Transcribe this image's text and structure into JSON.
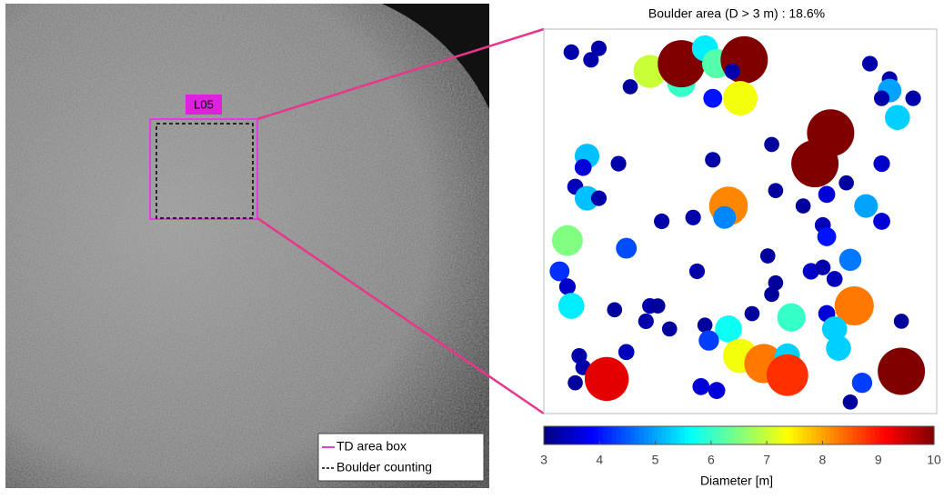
{
  "image_panel": {
    "marker_label": "L05",
    "legend": [
      "TD area box",
      "Boulder counting"
    ]
  },
  "chart_data": {
    "type": "bubble",
    "title": "Boulder area (D > 3 m) : 18.6%",
    "x": [
      7,
      12,
      14,
      22,
      27,
      35,
      35,
      41,
      44,
      51,
      43,
      50,
      48,
      83,
      88,
      88,
      86,
      94,
      90,
      73,
      58,
      69,
      43,
      11,
      10,
      19,
      86,
      77,
      72,
      59,
      8,
      11,
      14,
      47,
      46,
      30,
      38,
      66,
      82,
      86,
      71,
      72,
      6,
      21,
      57,
      4,
      6,
      39,
      68,
      71,
      78,
      74,
      59,
      58,
      7,
      18,
      27,
      29,
      26,
      32,
      41,
      53,
      79,
      72,
      63,
      74,
      91,
      47,
      42,
      50,
      56,
      62,
      62,
      75,
      9,
      21,
      10,
      16,
      8,
      40,
      44,
      81,
      91,
      78
    ],
    "values": [
      94,
      92,
      95,
      85,
      89,
      86,
      91,
      95,
      91,
      92,
      82,
      82,
      89,
      91,
      87,
      84,
      82,
      82,
      77,
      73,
      70,
      65,
      66,
      67,
      64,
      65,
      65,
      60,
      57,
      58,
      59,
      56,
      56,
      54,
      51,
      50,
      51,
      54,
      54,
      50,
      49,
      46,
      45,
      43,
      41,
      37,
      33,
      37,
      37,
      38,
      40,
      35,
      34,
      31,
      28,
      27,
      28,
      28,
      24,
      22,
      23,
      26,
      28,
      26,
      25,
      22,
      24,
      22,
      19,
      15,
      13,
      15,
      10,
      17,
      15,
      16,
      12,
      9,
      8,
      7,
      6,
      8,
      11,
      3
    ],
    "sizes": [
      3.3,
      3.3,
      3.3,
      3.2,
      7,
      6,
      10,
      5.5,
      6.2,
      10,
      4,
      7.3,
      3.3,
      3.3,
      3.3,
      5,
      3.3,
      3.3,
      5.3,
      10,
      3.2,
      10,
      3.3,
      5.2,
      3.6,
      3.3,
      3.5,
      3.2,
      3.6,
      3.2,
      3.4,
      5.2,
      3.3,
      8.2,
      4.8,
      3.3,
      3.3,
      3.2,
      5,
      3.6,
      3.4,
      4,
      6.5,
      4.4,
      3.2,
      4.2,
      3.5,
      3.3,
      3.5,
      3.3,
      4.7,
      3.4,
      3.2,
      3.2,
      5.5,
      3.2,
      3.3,
      3.2,
      3.3,
      3.2,
      3.2,
      3.2,
      8.3,
      3.6,
      6,
      5.3,
      3.2,
      5.7,
      4.3,
      7.3,
      8.3,
      5.3,
      8.8,
      5.3,
      3.3,
      3.4,
      3.3,
      9.3,
      3.2,
      3.6,
      3.6,
      4.3,
      10,
      3.2
    ],
    "xlim": [
      0,
      100
    ],
    "ylim": [
      0,
      100
    ],
    "colormap": "jet",
    "clim": [
      3,
      10
    ],
    "cticks": [
      3,
      4,
      5,
      6,
      7,
      8,
      9,
      10
    ],
    "colorbar_label": "Diameter [m]"
  }
}
